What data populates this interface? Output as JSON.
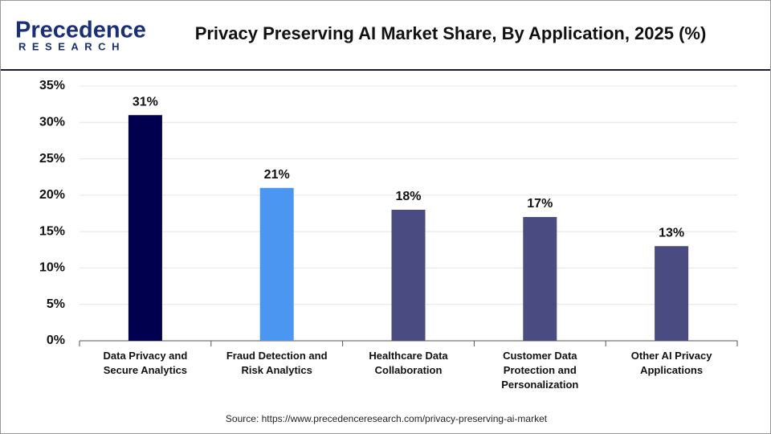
{
  "logo": {
    "name": "Precedence",
    "sub": "RESEARCH"
  },
  "chart_data": {
    "type": "bar",
    "title": "Privacy Preserving AI Market Share, By Application, 2025 (%)",
    "categories": [
      "Data Privacy and Secure Analytics",
      "Fraud Detection and Risk Analytics",
      "Healthcare Data Collaboration",
      "Customer Data Protection and Personalization",
      "Other AI Privacy Applications"
    ],
    "values": [
      31,
      21,
      18,
      17,
      13
    ],
    "value_labels": [
      "31%",
      "21%",
      "18%",
      "17%",
      "13%"
    ],
    "colors": [
      "#00004f",
      "#4a96f0",
      "#4a4b80",
      "#4a4b80",
      "#4a4b80"
    ],
    "ylim": [
      0,
      35
    ],
    "yticks": [
      {
        "value": 0,
        "label": "0%"
      },
      {
        "value": 5,
        "label": "5%"
      },
      {
        "value": 10,
        "label": "10%"
      },
      {
        "value": 15,
        "label": "15%"
      },
      {
        "value": 20,
        "label": "20%"
      },
      {
        "value": 25,
        "label": "25%"
      },
      {
        "value": 30,
        "label": "30%"
      },
      {
        "value": 35,
        "label": "35%"
      }
    ],
    "grid": true,
    "source": "Source: https://www.precedenceresearch.com/privacy-preserving-ai-market"
  }
}
